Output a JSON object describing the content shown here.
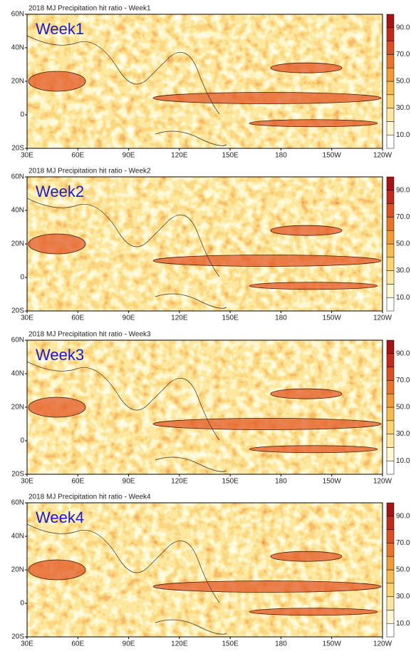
{
  "panels": [
    {
      "title": "2018 MJ Precipitation hit ratio - Week1",
      "label": "Week1"
    },
    {
      "title": "2018 MJ Precipitation hit ratio - Week2",
      "label": "Week2"
    },
    {
      "title": "2018 MJ Precipitation hit ratio - Week3",
      "label": "Week3"
    },
    {
      "title": "2018 MJ Precipitation hit ratio - Week4",
      "label": "Week4"
    }
  ],
  "x_axis_labels": [
    "30E",
    "60E",
    "90E",
    "120E",
    "150E",
    "180",
    "150W",
    "120W"
  ],
  "y_axis_labels": [
    "60N",
    "40N",
    "20N",
    "0",
    "20S"
  ],
  "colorbar_labels": [
    "10.0",
    "30.0",
    "50.0",
    "70.0",
    "90.0"
  ]
}
